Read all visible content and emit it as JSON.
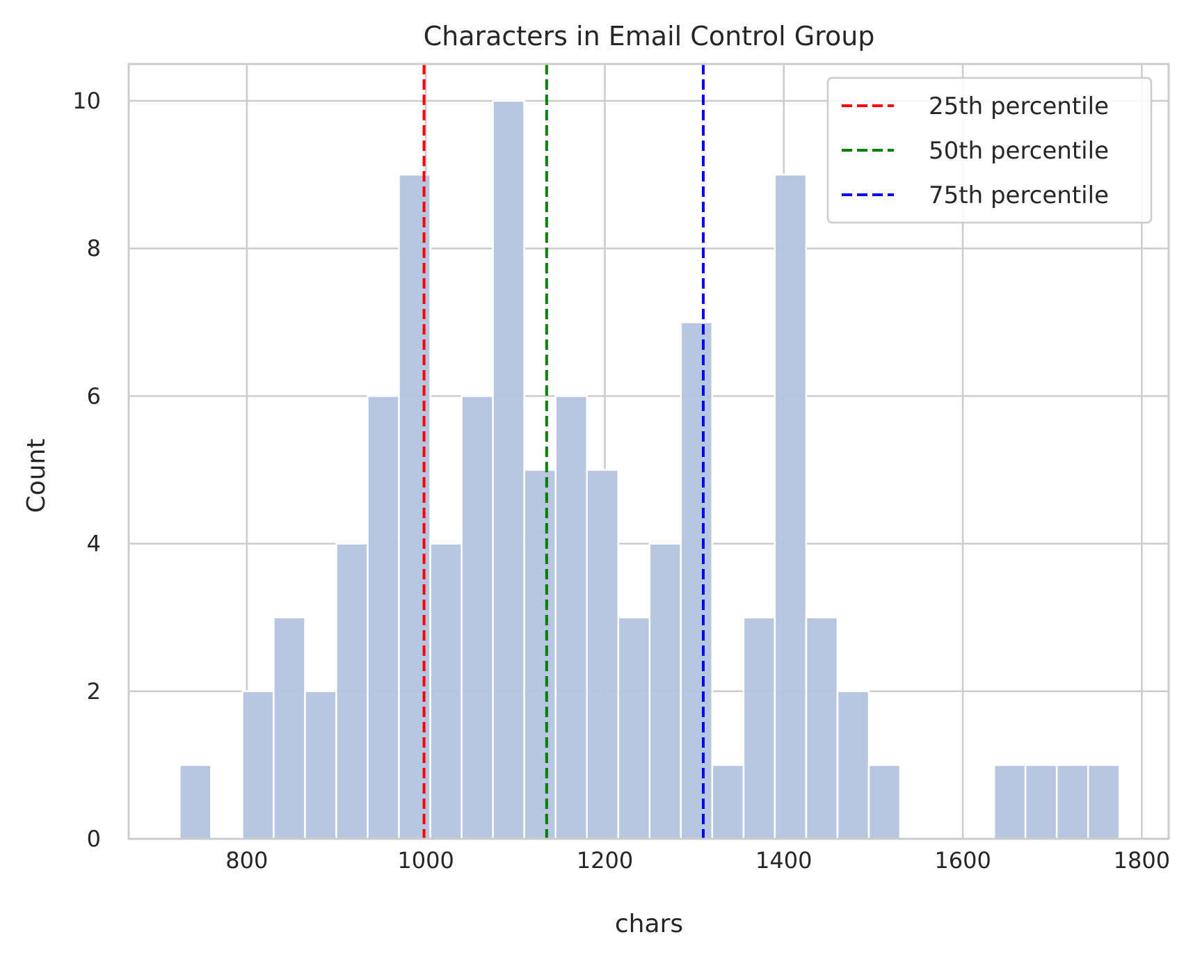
{
  "chart_data": {
    "type": "bar",
    "title": "Characters in Email Control Group",
    "xlabel": "chars",
    "ylabel": "Count",
    "xlim": [
      668,
      1830
    ],
    "ylim": [
      0,
      10.5
    ],
    "xticks": [
      800,
      1000,
      1200,
      1400,
      1600,
      1800
    ],
    "yticks": [
      0,
      2,
      4,
      6,
      8,
      10
    ],
    "grid": true,
    "bar_color": "#b4c4df",
    "bin_width": 35,
    "bins": [
      {
        "x0": 725,
        "x1": 760,
        "count": 1
      },
      {
        "x0": 760,
        "x1": 795,
        "count": 0
      },
      {
        "x0": 795,
        "x1": 830,
        "count": 2
      },
      {
        "x0": 830,
        "x1": 865,
        "count": 3
      },
      {
        "x0": 865,
        "x1": 900,
        "count": 2
      },
      {
        "x0": 900,
        "x1": 935,
        "count": 4
      },
      {
        "x0": 935,
        "x1": 970,
        "count": 6
      },
      {
        "x0": 970,
        "x1": 1005,
        "count": 9
      },
      {
        "x0": 1005,
        "x1": 1040,
        "count": 4
      },
      {
        "x0": 1040,
        "x1": 1075,
        "count": 6
      },
      {
        "x0": 1075,
        "x1": 1110,
        "count": 10
      },
      {
        "x0": 1110,
        "x1": 1145,
        "count": 5
      },
      {
        "x0": 1145,
        "x1": 1180,
        "count": 6
      },
      {
        "x0": 1180,
        "x1": 1215,
        "count": 5
      },
      {
        "x0": 1215,
        "x1": 1250,
        "count": 3
      },
      {
        "x0": 1250,
        "x1": 1285,
        "count": 4
      },
      {
        "x0": 1285,
        "x1": 1320,
        "count": 7
      },
      {
        "x0": 1320,
        "x1": 1355,
        "count": 1
      },
      {
        "x0": 1355,
        "x1": 1390,
        "count": 3
      },
      {
        "x0": 1390,
        "x1": 1425,
        "count": 9
      },
      {
        "x0": 1425,
        "x1": 1460,
        "count": 3
      },
      {
        "x0": 1460,
        "x1": 1495,
        "count": 2
      },
      {
        "x0": 1495,
        "x1": 1530,
        "count": 1
      },
      {
        "x0": 1530,
        "x1": 1565,
        "count": 0
      },
      {
        "x0": 1565,
        "x1": 1600,
        "count": 0
      },
      {
        "x0": 1600,
        "x1": 1635,
        "count": 0
      },
      {
        "x0": 1635,
        "x1": 1670,
        "count": 1
      },
      {
        "x0": 1670,
        "x1": 1705,
        "count": 1
      },
      {
        "x0": 1705,
        "x1": 1740,
        "count": 1
      },
      {
        "x0": 1740,
        "x1": 1775,
        "count": 1
      }
    ],
    "percentile_lines": [
      {
        "name": "25th percentile",
        "x": 998,
        "color": "#ff0000"
      },
      {
        "name": "50th percentile",
        "x": 1135,
        "color": "#008000"
      },
      {
        "name": "75th percentile",
        "x": 1310,
        "color": "#0000ff"
      }
    ],
    "legend": {
      "position": "top-right"
    }
  }
}
